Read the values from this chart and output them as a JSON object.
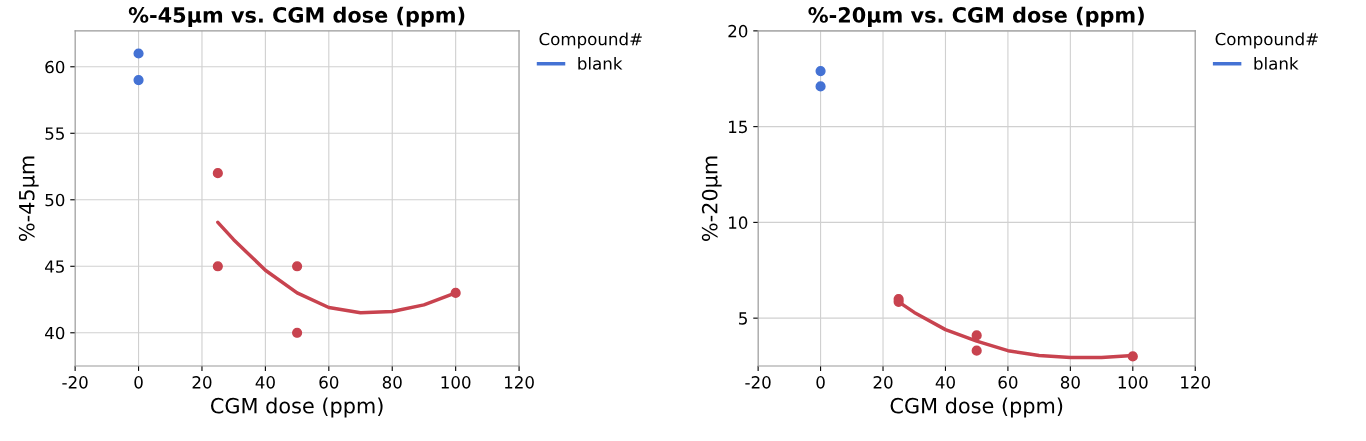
{
  "chart_data": [
    {
      "type": "scatter",
      "title": "%-45µm vs. CGM dose (ppm)",
      "xlabel": "CGM dose (ppm)",
      "ylabel": "%-45µm",
      "legend_title": "Compound#",
      "legend": "right",
      "grid": true,
      "xlim": [
        -20,
        120
      ],
      "xticks": [
        {
          "value": -20,
          "label": "-20"
        },
        0,
        20,
        40,
        60,
        80,
        100,
        120
      ],
      "ylim": [
        37.5,
        62.7
      ],
      "yticks": [
        40,
        45,
        50,
        55,
        60
      ],
      "series": [
        {
          "name": "blank",
          "color": "#4472d4",
          "marker": "circle",
          "x": [
            0,
            0
          ],
          "values": [
            61,
            59
          ]
        },
        {
          "color": "#c8434f",
          "marker": "circle",
          "x": [
            25,
            25,
            50,
            50,
            100
          ],
          "values": [
            52,
            45,
            45,
            40,
            43
          ]
        },
        {
          "type": "line",
          "color": "#c8434f",
          "x": [
            25,
            30,
            40,
            50,
            60,
            70,
            80,
            90,
            100
          ],
          "values": [
            48.3,
            47.0,
            44.7,
            43.0,
            41.9,
            41.5,
            41.6,
            42.1,
            43.0
          ]
        }
      ]
    },
    {
      "type": "scatter",
      "title": "%-20µm vs. CGM dose (ppm)",
      "xlabel": "CGM dose (ppm)",
      "ylabel": "%-20µm",
      "legend_title": "Compound#",
      "legend": "right",
      "grid": true,
      "xlim": [
        -20,
        120
      ],
      "xticks": [
        {
          "value": -20,
          "label": "-20"
        },
        0,
        20,
        40,
        60,
        80,
        100,
        120
      ],
      "ylim": [
        2.5,
        20
      ],
      "yticks": [
        5,
        10,
        15,
        20
      ],
      "series": [
        {
          "name": "blank",
          "color": "#4472d4",
          "marker": "circle",
          "x": [
            0,
            0
          ],
          "values": [
            17.9,
            17.1
          ]
        },
        {
          "color": "#c8434f",
          "marker": "circle",
          "x": [
            25,
            25,
            50,
            50,
            100
          ],
          "values": [
            6.0,
            5.85,
            4.1,
            3.3,
            3.0
          ]
        },
        {
          "type": "line",
          "color": "#c8434f",
          "x": [
            25,
            30,
            40,
            50,
            60,
            70,
            80,
            90,
            100
          ],
          "values": [
            5.85,
            5.3,
            4.4,
            3.8,
            3.3,
            3.05,
            2.95,
            2.95,
            3.05
          ]
        }
      ]
    }
  ]
}
